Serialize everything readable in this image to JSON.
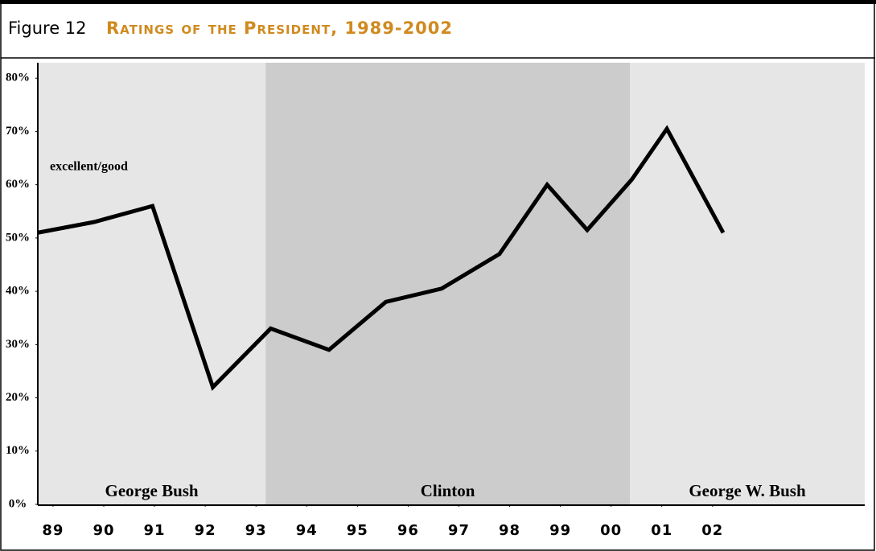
{
  "chart_data": {
    "type": "line",
    "figure_label": "Figure 12",
    "title": "Ratings of the President, 1989-2002",
    "x": [
      1988.7,
      1989.81,
      1990.96,
      1992.15,
      1993.29,
      1994.44,
      1995.56,
      1996.66,
      1997.8,
      1998.74,
      1999.53,
      2000.41,
      2001.1,
      2002.21
    ],
    "series": [
      {
        "name": "excellent/good",
        "color": "#000000",
        "values": [
          51,
          53,
          56,
          22,
          33,
          29,
          38,
          40.5,
          47,
          60,
          51.5,
          61,
          70.5,
          51
        ]
      }
    ],
    "eras": [
      {
        "name": "George Bush",
        "start": 1988.7,
        "end": 1993.19,
        "color": "#e6e6e6"
      },
      {
        "name": "Clinton",
        "start": 1993.19,
        "end": 2000.37,
        "color": "#cccccc"
      },
      {
        "name": "George W. Bush",
        "start": 2000.37,
        "end": 2005,
        "color": "#e6e6e6"
      }
    ],
    "xlim": [
      1988.7,
      2005
    ],
    "xticks": [
      {
        "value": 1989,
        "label": "89"
      },
      {
        "value": 1990,
        "label": "90"
      },
      {
        "value": 1991,
        "label": "91"
      },
      {
        "value": 1992,
        "label": "92"
      },
      {
        "value": 1993,
        "label": "93"
      },
      {
        "value": 1994,
        "label": "94"
      },
      {
        "value": 1995,
        "label": "95"
      },
      {
        "value": 1996,
        "label": "96"
      },
      {
        "value": 1997,
        "label": "97"
      },
      {
        "value": 1998,
        "label": "98"
      },
      {
        "value": 1999,
        "label": "99"
      },
      {
        "value": 2000,
        "label": "00"
      },
      {
        "value": 2001,
        "label": "01"
      },
      {
        "value": 2002,
        "label": "02"
      }
    ],
    "ylim": [
      0,
      82.9
    ],
    "yticks": [
      {
        "value": 0,
        "label": "0%"
      },
      {
        "value": 10,
        "label": "10%"
      },
      {
        "value": 20,
        "label": "20%"
      },
      {
        "value": 30,
        "label": "30%"
      },
      {
        "value": 40,
        "label": "40%"
      },
      {
        "value": 50,
        "label": "50%"
      },
      {
        "value": 60,
        "label": "60%"
      },
      {
        "value": 70,
        "label": "70%"
      },
      {
        "value": 80,
        "label": "80%"
      }
    ]
  }
}
